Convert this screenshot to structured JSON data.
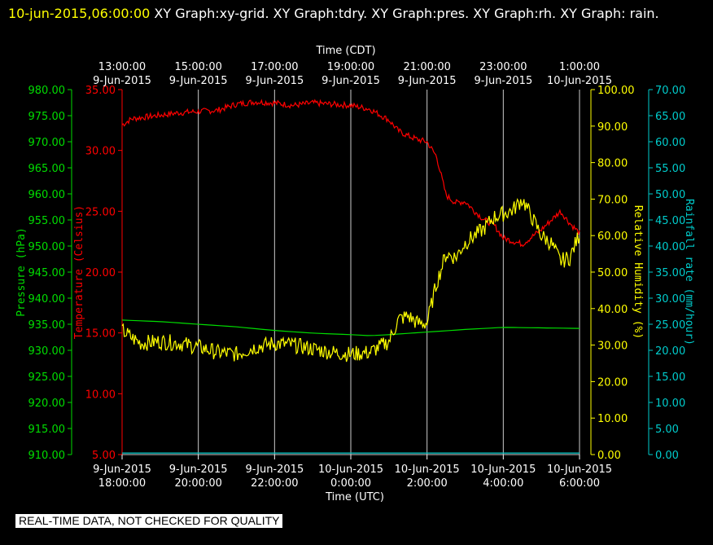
{
  "header": {
    "timestamp": "10-jun-2015,06:00:00",
    "title_rest": "  XY Graph:xy-grid.  XY Graph:tdry.  XY Graph:pres.  XY Graph:rh.  XY Graph: rain."
  },
  "footer_note": "REAL-TIME DATA, NOT CHECKED FOR QUALITY",
  "colors": {
    "background": "#000000",
    "pressure": "#00dd00",
    "temperature": "#ff0000",
    "humidity": "#ffff00",
    "rain": "#00cccc",
    "grid": "#cccccc",
    "text": "#ffffff"
  },
  "chart_data": {
    "type": "line",
    "grid": true,
    "x_top": {
      "label": "Time (CDT)",
      "ticks": [
        {
          "time": "13:00:00",
          "date": "9-Jun-2015"
        },
        {
          "time": "15:00:00",
          "date": "9-Jun-2015"
        },
        {
          "time": "17:00:00",
          "date": "9-Jun-2015"
        },
        {
          "time": "19:00:00",
          "date": "9-Jun-2015"
        },
        {
          "time": "21:00:00",
          "date": "9-Jun-2015"
        },
        {
          "time": "23:00:00",
          "date": "9-Jun-2015"
        },
        {
          "time": "1:00:00",
          "date": "10-Jun-2015"
        }
      ]
    },
    "x_bottom": {
      "label": "Time (UTC)",
      "range": [
        "2015-06-09 18:00:00",
        "2015-06-10 06:00:00"
      ],
      "ticks": [
        {
          "date": "9-Jun-2015",
          "time": "18:00:00"
        },
        {
          "date": "9-Jun-2015",
          "time": "20:00:00"
        },
        {
          "date": "9-Jun-2015",
          "time": "22:00:00"
        },
        {
          "date": "10-Jun-2015",
          "time": "0:00:00"
        },
        {
          "date": "10-Jun-2015",
          "time": "2:00:00"
        },
        {
          "date": "10-Jun-2015",
          "time": "4:00:00"
        },
        {
          "date": "10-Jun-2015",
          "time": "6:00:00"
        }
      ]
    },
    "axes": {
      "pressure": {
        "label": "Pressure (hPa)",
        "range": [
          910,
          980
        ],
        "ticks": [
          "980.00",
          "975.00",
          "970.00",
          "965.00",
          "960.00",
          "955.00",
          "950.00",
          "945.00",
          "940.00",
          "935.00",
          "930.00",
          "925.00",
          "920.00",
          "915.00",
          "910.00"
        ]
      },
      "temperature": {
        "label": "Temperature (Celsius)",
        "range": [
          5,
          35
        ],
        "ticks": [
          "35.00",
          "30.00",
          "25.00",
          "20.00",
          "15.00",
          "10.00",
          "5.00"
        ]
      },
      "humidity": {
        "label": "Relative Humidity (%)",
        "range": [
          0,
          100
        ],
        "ticks": [
          "100.00",
          "90.00",
          "80.00",
          "70.00",
          "60.00",
          "50.00",
          "40.00",
          "30.00",
          "20.00",
          "10.00",
          "0.00"
        ]
      },
      "rain": {
        "label": "Rainfall rate (mm/hour)",
        "range": [
          0,
          70
        ],
        "ticks": [
          "70.00",
          "65.00",
          "60.00",
          "55.00",
          "50.00",
          "45.00",
          "40.00",
          "35.00",
          "30.00",
          "25.00",
          "20.00",
          "15.00",
          "10.00",
          "5.00",
          "0.00"
        ]
      }
    },
    "series": [
      {
        "name": "tdry",
        "axis": "temperature",
        "x_hours_utc": [
          0,
          0.25,
          0.5,
          1,
          1.5,
          2,
          2.5,
          3,
          3.5,
          4,
          4.5,
          5,
          5.5,
          6,
          6.5,
          7,
          7.25,
          7.5,
          7.75,
          8,
          8.25,
          8.5,
          8.75,
          9,
          9.25,
          9.5,
          9.75,
          10,
          10.5,
          11,
          11.5,
          11.75,
          12
        ],
        "values": [
          32.1,
          32.6,
          32.7,
          32.9,
          33.1,
          33.2,
          33.3,
          33.8,
          34.0,
          33.9,
          33.7,
          33.9,
          33.8,
          33.7,
          33.4,
          32.5,
          31.6,
          31.2,
          30.9,
          30.7,
          29.5,
          26.3,
          25.7,
          25.8,
          25.0,
          24.3,
          23.9,
          22.8,
          22.3,
          23.5,
          25.0,
          24.0,
          23.2
        ]
      },
      {
        "name": "pres",
        "axis": "pressure",
        "x_hours_utc": [
          0,
          1,
          2,
          3,
          4,
          5,
          6,
          6.5,
          7,
          8,
          9,
          10,
          11,
          12
        ],
        "values": [
          935.8,
          935.5,
          935.0,
          934.5,
          933.8,
          933.3,
          933.0,
          932.8,
          933.0,
          933.5,
          934.0,
          934.4,
          934.3,
          934.2
        ]
      },
      {
        "name": "rh",
        "axis": "humidity",
        "x_hours_utc": [
          0,
          0.25,
          0.5,
          1,
          1.5,
          2,
          2.5,
          3,
          3.5,
          4,
          4.5,
          5,
          5.5,
          6,
          6.5,
          7,
          7.25,
          7.5,
          7.75,
          8,
          8.25,
          8.5,
          8.75,
          9,
          9.25,
          9.5,
          9.75,
          10,
          10.25,
          10.5,
          10.75,
          11,
          11.25,
          11.5,
          11.75,
          12
        ],
        "values": [
          34.0,
          32.0,
          30.5,
          31.0,
          30.5,
          29.5,
          28.0,
          27.5,
          29.5,
          30.5,
          30.0,
          29.0,
          28.0,
          27.5,
          28.0,
          31.0,
          37.0,
          38.0,
          36.0,
          36.0,
          47.0,
          55.0,
          54.0,
          58.0,
          60.0,
          62.0,
          65.0,
          66.0,
          67.0,
          70.0,
          65.0,
          60.0,
          58.0,
          53.0,
          54.0,
          60.5
        ]
      },
      {
        "name": "rain",
        "axis": "rain",
        "x_hours_utc": [
          0,
          12
        ],
        "values": [
          0.3,
          0.3
        ]
      }
    ]
  }
}
